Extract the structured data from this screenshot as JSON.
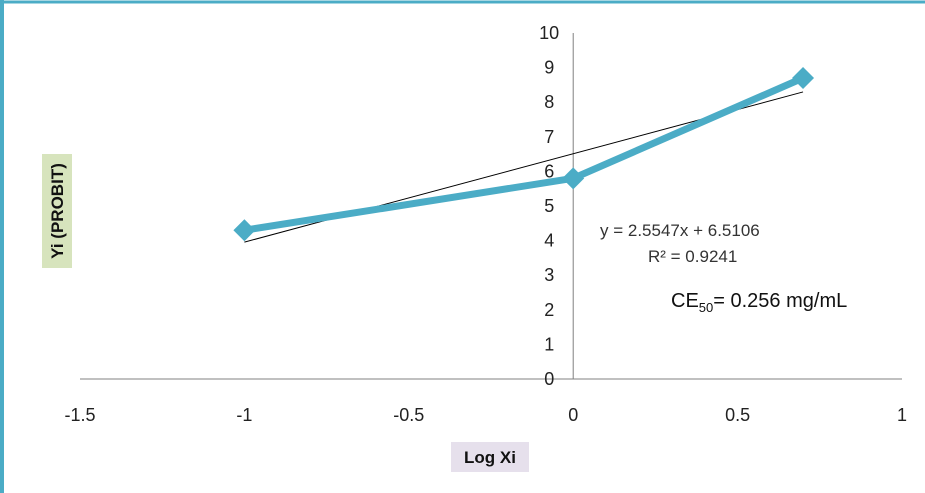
{
  "colors": {
    "series": "#4BACC6",
    "trendline": "#000000",
    "axis": "#808080",
    "frame_left": "#4BACC6",
    "frame_top": "#4BACC6",
    "ylabel_bg": "#D7E4BD",
    "xlabel_bg": "#E6E0EC"
  },
  "chart_data": {
    "type": "scatter",
    "title": "",
    "xlabel": "Log Xi",
    "ylabel": "Yi (PROBIT)",
    "xlim": [
      -1.5,
      1
    ],
    "ylim": [
      0,
      10
    ],
    "x_ticks": [
      "-1.5",
      "-1",
      "-0.5",
      "0",
      "0.5",
      "1"
    ],
    "y_ticks": [
      "0",
      "1",
      "2",
      "3",
      "4",
      "5",
      "6",
      "7",
      "8",
      "9",
      "10"
    ],
    "grid": false,
    "series": [
      {
        "x": [
          -1,
          0,
          0.699
        ],
        "y": [
          4.3,
          5.8,
          8.7
        ],
        "marker": "diamond",
        "line": true
      }
    ],
    "trendline": {
      "slope": 2.5547,
      "intercept": 6.5106,
      "x_range": [
        -1,
        0.699
      ]
    },
    "annotations": {
      "equation": "y = 2.5547x + 6.5106",
      "r_squared": "R² = 0.9241",
      "ce50_main": "CE",
      "ce50_sub": "50",
      "ce50_rest": "= 0.256 mg/mL"
    }
  }
}
